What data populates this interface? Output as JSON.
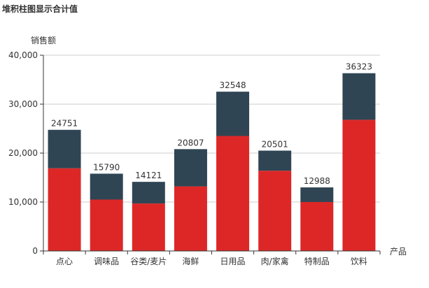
{
  "chart_data": {
    "type": "bar",
    "stacked": true,
    "title": "堆积柱图显示合计值",
    "xlabel": "产品",
    "ylabel": "销售额",
    "categories": [
      "点心",
      "调味品",
      "谷类/麦片",
      "海鲜",
      "日用品",
      "肉/家禽",
      "特制品",
      "饮料"
    ],
    "series": [
      {
        "values": [
          16900,
          10500,
          9700,
          13200,
          23500,
          16400,
          10000,
          26800
        ],
        "color": "#dd2727"
      },
      {
        "values": [
          7851,
          5290,
          4421,
          7607,
          9048,
          4101,
          2988,
          9523
        ],
        "color": "#2f4554"
      }
    ],
    "totals": [
      24751,
      15790,
      14121,
      20807,
      32548,
      20501,
      12988,
      36323
    ],
    "ylim": [
      0,
      40000
    ],
    "yticks": [
      0,
      10000,
      20000,
      30000,
      40000
    ],
    "ytick_labels": [
      "0",
      "10,000",
      "20,000",
      "30,000",
      "40,000"
    ],
    "grid": true,
    "legend": "none"
  }
}
